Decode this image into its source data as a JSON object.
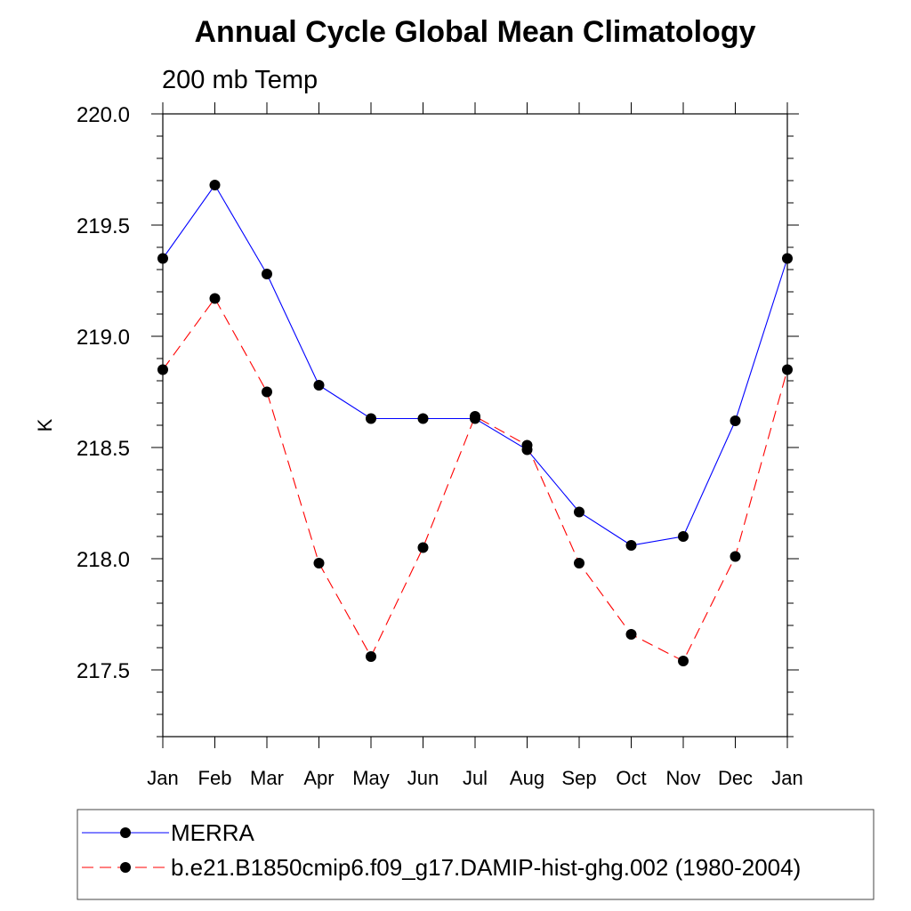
{
  "chart_data": {
    "type": "line",
    "title": "Annual Cycle Global Mean Climatology",
    "subtitle": "200 mb Temp",
    "xlabel": "",
    "ylabel": "K",
    "categories": [
      "Jan",
      "Feb",
      "Mar",
      "Apr",
      "May",
      "Jun",
      "Jul",
      "Aug",
      "Sep",
      "Oct",
      "Nov",
      "Dec",
      "Jan"
    ],
    "ylim": [
      217.2,
      220.0
    ],
    "yticks": [
      "220.0",
      "219.5",
      "219.0",
      "218.5",
      "218.0",
      "217.5"
    ],
    "grid": false,
    "legend_placement": "bottom",
    "series": [
      {
        "name": "MERRA",
        "color": "#0000ff",
        "dash": "solid",
        "values": [
          219.35,
          219.68,
          219.28,
          218.78,
          218.63,
          218.63,
          218.63,
          218.49,
          218.21,
          218.06,
          218.1,
          218.62,
          219.35
        ]
      },
      {
        "name": "b.e21.B1850cmip6.f09_g17.DAMIP-hist-ghg.002 (1980-2004)",
        "color": "#ff0000",
        "dash": "dashed",
        "values": [
          218.85,
          219.17,
          218.75,
          217.98,
          217.56,
          218.05,
          218.64,
          218.51,
          217.98,
          217.66,
          217.54,
          218.01,
          218.85
        ]
      }
    ]
  }
}
